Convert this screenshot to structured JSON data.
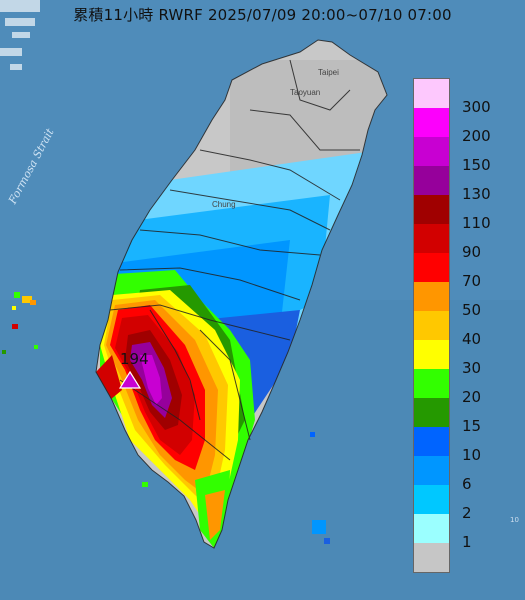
{
  "title": "累積11小時 RWRF 2025/07/09 20:00~07/10 07:00",
  "strait_label": "Formosa Strait",
  "places": {
    "taipei": "Taipei",
    "taoyuan": "Taoyuan",
    "taichung": "Chung"
  },
  "max_value": "194",
  "legend": [
    {
      "label": "300",
      "color": "#fdc8fd"
    },
    {
      "label": "200",
      "color": "#fc00fc"
    },
    {
      "label": "150",
      "color": "#c800d2"
    },
    {
      "label": "130",
      "color": "#96009b"
    },
    {
      "label": "110",
      "color": "#a00000"
    },
    {
      "label": "90",
      "color": "#d20000"
    },
    {
      "label": "70",
      "color": "#ff0000"
    },
    {
      "label": "50",
      "color": "#ff9600"
    },
    {
      "label": "40",
      "color": "#ffc800"
    },
    {
      "label": "30",
      "color": "#ffff00"
    },
    {
      "label": "20",
      "color": "#32ff00"
    },
    {
      "label": "15",
      "color": "#259900"
    },
    {
      "label": "10",
      "color": "#0064ff"
    },
    {
      "label": "6",
      "color": "#0096ff"
    },
    {
      "label": "2",
      "color": "#00c8ff"
    },
    {
      "label": "1",
      "color": "#9bffff"
    },
    {
      "label": "",
      "color": "#c6c6c6"
    }
  ],
  "scale_mark": "10"
}
